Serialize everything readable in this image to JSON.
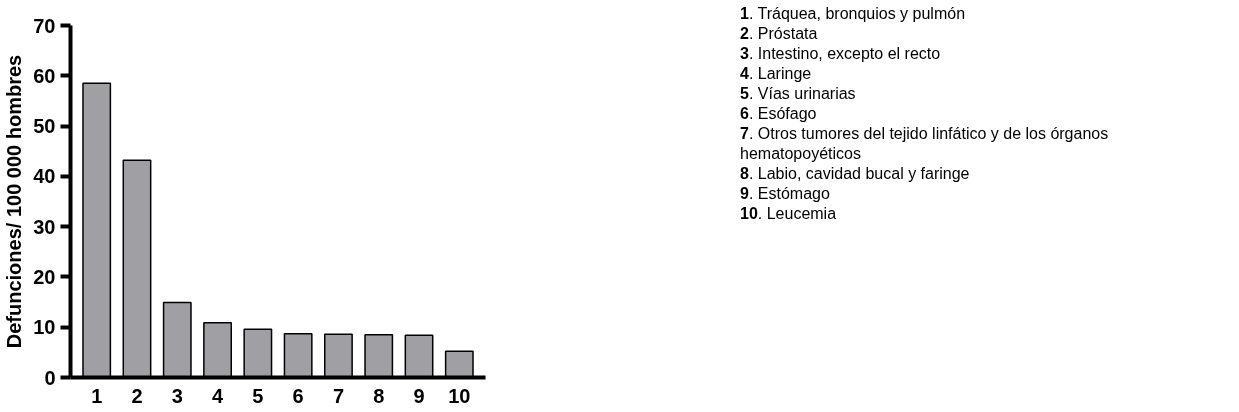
{
  "chart_data": {
    "type": "bar",
    "ylabel": "Defunciones/ 100 000 hombres",
    "categories": [
      "1",
      "2",
      "3",
      "4",
      "5",
      "6",
      "7",
      "8",
      "9",
      "10"
    ],
    "values": [
      58.5,
      43.2,
      14.9,
      10.9,
      9.6,
      8.7,
      8.6,
      8.5,
      8.4,
      5.2
    ],
    "color": "#a09fa4",
    "ylim": [
      0,
      70
    ],
    "yticks": [
      0,
      10,
      20,
      30,
      40,
      50,
      60,
      70
    ],
    "grid": false,
    "annotations": [
      "1. Tráquea, bronquios y pulmón",
      "2. Próstata",
      "3. Intestino, excepto el recto",
      "4. Laringe",
      "5. Vías urinarias",
      "6. Esófago",
      "7.  Otros tumores del tejido linfático y de los órganos hematopoyéticos",
      "8. Labio, cavidad bucal y faringe",
      "9. Estómago",
      "10. Leucemia"
    ]
  }
}
